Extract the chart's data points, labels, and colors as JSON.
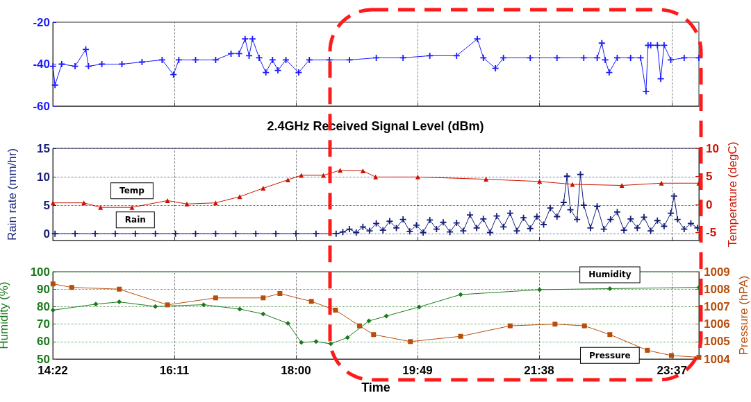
{
  "chart_data": [
    {
      "type": "line",
      "title": "2.4GHz Received Signal Level (dBm)",
      "xlim": [
        14.367,
        24.02
      ],
      "xticks": [
        {
          "value": 14.367,
          "label": null
        },
        {
          "value": 16.183,
          "label": null
        },
        {
          "value": 18.0,
          "label": null
        },
        {
          "value": 19.817,
          "label": null
        },
        {
          "value": 21.633,
          "label": null
        },
        {
          "value": 23.617,
          "label": null
        }
      ],
      "ylim": [
        -60,
        -20
      ],
      "yticks": [
        -60,
        -40,
        -20
      ],
      "grid": "x",
      "legend": false,
      "tick_labels": "y",
      "marker": "cross",
      "series": [
        {
          "color": "#1a1aff",
          "x": [
            14.37,
            14.4,
            14.5,
            14.7,
            14.86,
            14.9,
            15.1,
            15.4,
            15.7,
            16.0,
            16.17,
            16.25,
            16.5,
            16.8,
            17.03,
            17.15,
            17.24,
            17.3,
            17.35,
            17.45,
            17.55,
            17.65,
            17.73,
            17.85,
            18.04,
            18.2,
            18.5,
            18.8,
            19.2,
            19.6,
            20.0,
            20.4,
            20.71,
            20.8,
            20.98,
            21.1,
            21.5,
            21.9,
            22.3,
            22.5,
            22.57,
            22.62,
            22.68,
            22.8,
            23.0,
            23.15,
            23.23,
            23.26,
            23.3,
            23.4,
            23.45,
            23.5,
            23.6,
            23.8,
            24.02
          ],
          "values": [
            -41,
            -50,
            -40,
            -41,
            -33,
            -41,
            -40,
            -40,
            -39,
            -38,
            -45,
            -38,
            -38,
            -38,
            -35,
            -35,
            -28,
            -36,
            -28,
            -37,
            -44,
            -38,
            -43,
            -38,
            -44,
            -38,
            -38,
            -38,
            -37,
            -37,
            -36,
            -36,
            -28,
            -37,
            -42,
            -37,
            -37,
            -37,
            -37,
            -37,
            -30,
            -38,
            -44,
            -37,
            -37,
            -37,
            -53,
            -31,
            -31,
            -31,
            -47,
            -31,
            -38,
            -37,
            -37
          ]
        }
      ]
    },
    {
      "type": "line",
      "ylabel": "Rain rate (mm/hr)",
      "y2label": "Temperature (degC)",
      "xlim": [
        14.367,
        24.02
      ],
      "xticks": [
        {
          "value": 14.367,
          "label": null
        },
        {
          "value": 16.183,
          "label": null
        },
        {
          "value": 18.0,
          "label": null
        },
        {
          "value": 19.817,
          "label": null
        },
        {
          "value": 21.633,
          "label": null
        },
        {
          "value": 23.617,
          "label": null
        }
      ],
      "ylim": [
        -1.2,
        15
      ],
      "yticks": [
        0,
        5,
        10,
        15
      ],
      "y2lim": [
        -6.4,
        10
      ],
      "y2ticks": [
        -5,
        0,
        5,
        10
      ],
      "grid": true,
      "legend": false,
      "tick_labels": "y",
      "series": [
        {
          "name": "Rain",
          "color": "#141e78",
          "marker": "cross",
          "x": [
            14.4,
            14.7,
            15.0,
            15.3,
            15.6,
            15.9,
            16.2,
            16.5,
            16.8,
            17.1,
            17.4,
            17.7,
            18.0,
            18.3,
            18.6,
            18.7,
            18.8,
            18.9,
            19.0,
            19.1,
            19.2,
            19.3,
            19.4,
            19.5,
            19.6,
            19.7,
            19.8,
            19.9,
            20.0,
            20.1,
            20.2,
            20.3,
            20.4,
            20.5,
            20.6,
            20.7,
            20.8,
            20.9,
            21.0,
            21.1,
            21.2,
            21.3,
            21.4,
            21.5,
            21.6,
            21.7,
            21.8,
            21.9,
            22.0,
            22.05,
            22.1,
            22.2,
            22.25,
            22.3,
            22.4,
            22.5,
            22.6,
            22.7,
            22.8,
            22.9,
            23.0,
            23.1,
            23.2,
            23.3,
            23.4,
            23.5,
            23.6,
            23.65,
            23.7,
            23.8,
            23.9,
            24.0
          ],
          "values": [
            0,
            0,
            0,
            0,
            0,
            0,
            0,
            0,
            0,
            0,
            0,
            0,
            0,
            0,
            0,
            0.3,
            0.8,
            0.2,
            1.2,
            0.5,
            1.8,
            0.6,
            2.2,
            1.0,
            2.5,
            0.4,
            1.5,
            0.2,
            2.4,
            0.8,
            2.0,
            0.3,
            1.9,
            0.5,
            3.3,
            1.0,
            2.6,
            0.2,
            3.1,
            1.2,
            3.6,
            0.5,
            2.8,
            0.9,
            3.0,
            1.6,
            4.5,
            3.0,
            5.5,
            10.1,
            4.2,
            2.5,
            10.4,
            5.0,
            1.0,
            4.8,
            0.8,
            2.5,
            3.8,
            0.6,
            2.6,
            1.0,
            2.9,
            0.5,
            2.3,
            1.3,
            3.6,
            6.6,
            2.5,
            0.8,
            1.8,
            1.0
          ]
        },
        {
          "name": "Temp",
          "color": "#cc1100",
          "marker": "triangle",
          "axis": "y2",
          "x": [
            14.37,
            14.83,
            15.08,
            15.55,
            16.08,
            16.37,
            16.8,
            17.16,
            17.51,
            17.88,
            18.08,
            18.41,
            18.66,
            19.0,
            19.19,
            19.82,
            20.84,
            21.64,
            22.13,
            22.87,
            23.46,
            24.02
          ],
          "values": [
            0.3,
            0.3,
            -0.5,
            -0.5,
            0.7,
            0.1,
            0.3,
            1.4,
            2.9,
            4.4,
            5.2,
            5.2,
            6.1,
            6.0,
            4.9,
            4.9,
            4.5,
            4.1,
            3.6,
            3.4,
            3.8,
            3.8
          ]
        }
      ]
    },
    {
      "type": "line",
      "xlabel": "Time",
      "ylabel": "Humidity (%)",
      "y2label": "Pressure (hPA)",
      "xlim": [
        14.367,
        24.02
      ],
      "xticks": [
        {
          "value": 14.367,
          "label": "14:22"
        },
        {
          "value": 16.183,
          "label": "16:11"
        },
        {
          "value": 18.0,
          "label": "18:00"
        },
        {
          "value": 19.817,
          "label": "19:49"
        },
        {
          "value": 21.633,
          "label": "21:38"
        },
        {
          "value": 23.617,
          "label": "23:37"
        }
      ],
      "ylim": [
        50,
        100
      ],
      "yticks": [
        50,
        60,
        70,
        80,
        90,
        100
      ],
      "y2lim": [
        1004,
        1009
      ],
      "y2ticks": [
        1004,
        1005,
        1006,
        1007,
        1008,
        1009
      ],
      "grid": true,
      "legend": false,
      "series": [
        {
          "name": "Humidity",
          "color": "#1a7a1a",
          "marker": "diamond",
          "x": [
            14.37,
            15.01,
            15.36,
            15.9,
            16.62,
            17.16,
            17.51,
            17.88,
            18.08,
            18.3,
            18.52,
            18.77,
            19.09,
            19.35,
            19.84,
            20.46,
            21.64,
            22.69,
            24.02
          ],
          "values": [
            78,
            81.4,
            82.7,
            80.1,
            81.1,
            78.6,
            75.8,
            70.4,
            59.5,
            60,
            58.7,
            62.3,
            71.8,
            74.6,
            79.8,
            86.9,
            89.7,
            90.3,
            91
          ]
        },
        {
          "name": "Pressure",
          "color": "#b84d0a",
          "marker": "square",
          "axis": "y2",
          "x": [
            14.37,
            14.65,
            15.36,
            16.08,
            16.8,
            17.51,
            17.76,
            18.23,
            18.59,
            18.95,
            19.16,
            19.71,
            20.46,
            21.2,
            21.87,
            22.31,
            22.69,
            23.25,
            23.61,
            24.02
          ],
          "values": [
            1008.3,
            1008.1,
            1008.0,
            1007.1,
            1007.5,
            1007.5,
            1007.75,
            1007.3,
            1006.8,
            1005.9,
            1005.4,
            1005.0,
            1005.3,
            1005.9,
            1006.0,
            1005.9,
            1005.4,
            1004.5,
            1004.2,
            1004.1
          ]
        }
      ]
    }
  ]
}
